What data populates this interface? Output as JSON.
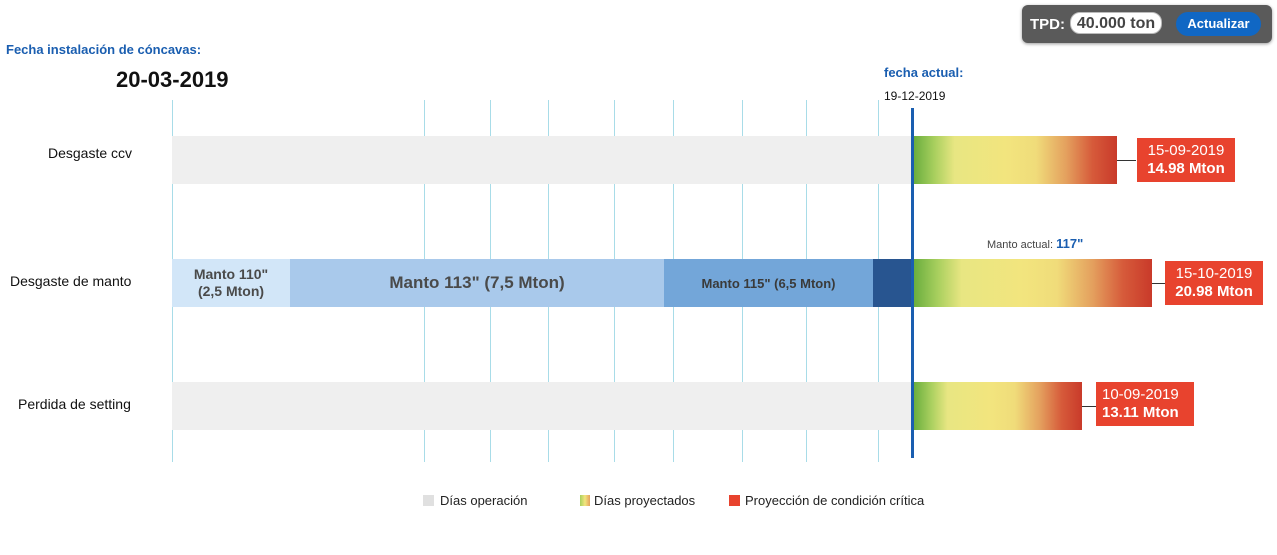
{
  "tpd": {
    "label": "TPD:",
    "value": "40.000 ton",
    "button": "Actualizar"
  },
  "install": {
    "label": "Fecha instalación de cóncavas:",
    "date": "20-03-2019"
  },
  "current": {
    "label": "fecha actual:",
    "date": "19-12-2019"
  },
  "rows": {
    "ccv": {
      "label": "Desgaste ccv",
      "date": "15-09-2019",
      "mton": "14.98 Mton"
    },
    "manto": {
      "label": "Desgaste de manto",
      "date": "15-10-2019",
      "mton": "20.98 Mton"
    },
    "setting": {
      "label": "Perdida de setting",
      "date": "10-09-2019",
      "mton": "13.11 Mton"
    }
  },
  "manto_segments": [
    {
      "line1": "Manto 110\"",
      "line2": "(2,5 Mton)",
      "color": "#d2e6f8"
    },
    {
      "line1": "Manto 113\" (7,5 Mton)",
      "color": "#a9c9eb"
    },
    {
      "line1": "Manto 115\" (6,5 Mton)",
      "color": "#73a6d9"
    },
    {
      "color": "#285590"
    }
  ],
  "manto_actual": {
    "label": "Manto actual:",
    "value": "117\""
  },
  "legend": {
    "operacion": "Días operación",
    "proyectados": "Días proyectados",
    "critica": "Proyección de condición crítica"
  },
  "colors": {
    "accent": "#1a5eb0",
    "critical": "#e8432e",
    "operation": "#efefef"
  }
}
